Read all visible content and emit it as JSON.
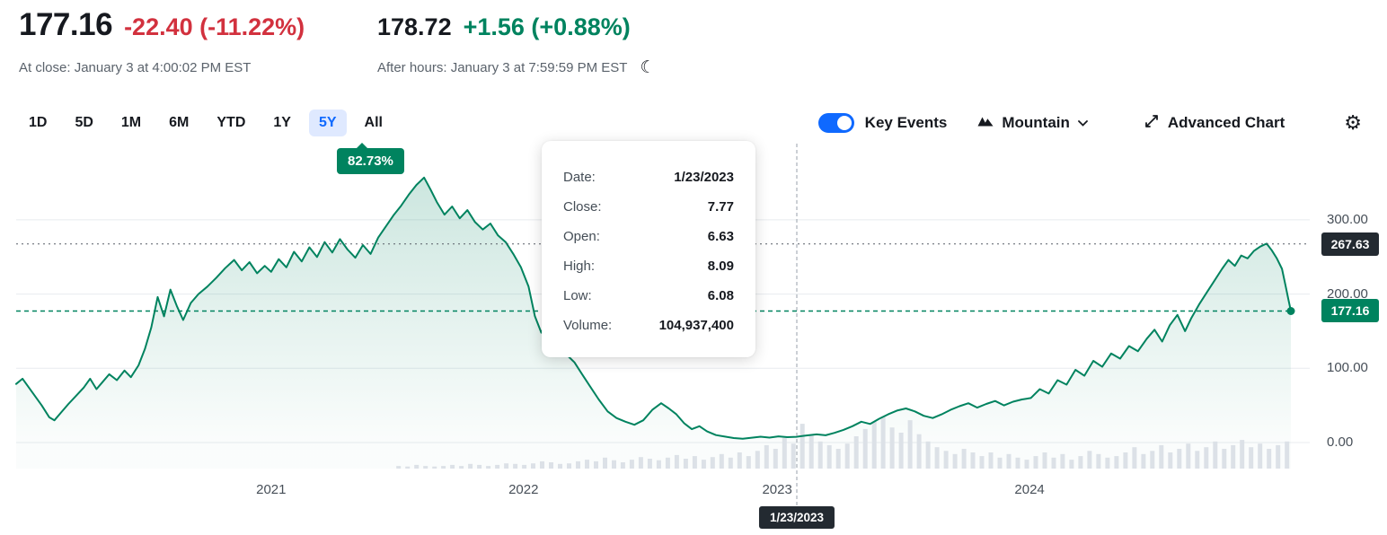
{
  "header": {
    "price": "177.16",
    "change": "-22.40 (-11.22%)",
    "at_close": "At close: January 3 at 4:00:02 PM EST",
    "after_hours_price": "178.72",
    "after_hours_change": "+1.56 (+0.88%)",
    "after_hours_note": "After hours: January 3 at 7:59:59 PM EST",
    "moon_icon": "☾"
  },
  "toolbar": {
    "ranges": [
      "1D",
      "5D",
      "1M",
      "6M",
      "YTD",
      "1Y",
      "5Y",
      "All"
    ],
    "selected_range": "5Y",
    "key_events_label": "Key Events",
    "key_events_on": true,
    "chart_type_label": "Mountain",
    "advanced_chart_label": "Advanced Chart",
    "settings_icon": "⚙"
  },
  "perf_badge": "82.73%",
  "tooltip": {
    "rows": [
      {
        "label": "Date:",
        "value": "1/23/2023"
      },
      {
        "label": "Close:",
        "value": "7.77"
      },
      {
        "label": "Open:",
        "value": "6.63"
      },
      {
        "label": "High:",
        "value": "8.09"
      },
      {
        "label": "Low:",
        "value": "6.08"
      },
      {
        "label": "Volume:",
        "value": "104,937,400"
      }
    ]
  },
  "chart_data": {
    "type": "area",
    "title": "5Y mountain chart with volume",
    "legend": "none",
    "grid": true,
    "x_range_years": [
      2020,
      2025
    ],
    "y_axis_range": [
      0,
      360
    ],
    "x_ticks": [
      {
        "t": 0.2,
        "label": "2021"
      },
      {
        "t": 0.398,
        "label": "2022"
      },
      {
        "t": 0.597,
        "label": "2023"
      },
      {
        "t": 0.795,
        "label": "2024"
      }
    ],
    "y_ticks": [
      {
        "value": 300,
        "label": "300.00"
      },
      {
        "value": 200,
        "label": "200.00"
      },
      {
        "value": 100,
        "label": "100.00"
      },
      {
        "value": 0,
        "label": "0.00"
      }
    ],
    "series": [
      {
        "name": "price",
        "points": [
          [
            0.0,
            79
          ],
          [
            0.005,
            86
          ],
          [
            0.01,
            74
          ],
          [
            0.015,
            62
          ],
          [
            0.02,
            50
          ],
          [
            0.026,
            34
          ],
          [
            0.03,
            30
          ],
          [
            0.035,
            40
          ],
          [
            0.041,
            52
          ],
          [
            0.047,
            63
          ],
          [
            0.053,
            74
          ],
          [
            0.058,
            86
          ],
          [
            0.063,
            72
          ],
          [
            0.068,
            82
          ],
          [
            0.073,
            92
          ],
          [
            0.079,
            84
          ],
          [
            0.085,
            97
          ],
          [
            0.09,
            88
          ],
          [
            0.096,
            104
          ],
          [
            0.101,
            126
          ],
          [
            0.106,
            155
          ],
          [
            0.111,
            196
          ],
          [
            0.116,
            170
          ],
          [
            0.121,
            206
          ],
          [
            0.126,
            184
          ],
          [
            0.131,
            165
          ],
          [
            0.137,
            188
          ],
          [
            0.143,
            200
          ],
          [
            0.15,
            210
          ],
          [
            0.157,
            222
          ],
          [
            0.164,
            235
          ],
          [
            0.171,
            246
          ],
          [
            0.177,
            232
          ],
          [
            0.183,
            243
          ],
          [
            0.189,
            228
          ],
          [
            0.195,
            238
          ],
          [
            0.2,
            230
          ],
          [
            0.206,
            247
          ],
          [
            0.212,
            236
          ],
          [
            0.218,
            257
          ],
          [
            0.224,
            244
          ],
          [
            0.23,
            263
          ],
          [
            0.236,
            250
          ],
          [
            0.242,
            270
          ],
          [
            0.248,
            256
          ],
          [
            0.254,
            274
          ],
          [
            0.26,
            260
          ],
          [
            0.266,
            249
          ],
          [
            0.272,
            266
          ],
          [
            0.278,
            254
          ],
          [
            0.284,
            276
          ],
          [
            0.29,
            291
          ],
          [
            0.296,
            306
          ],
          [
            0.302,
            319
          ],
          [
            0.308,
            334
          ],
          [
            0.314,
            347
          ],
          [
            0.32,
            357
          ],
          [
            0.325,
            341
          ],
          [
            0.33,
            324
          ],
          [
            0.336,
            307
          ],
          [
            0.342,
            318
          ],
          [
            0.348,
            302
          ],
          [
            0.354,
            313
          ],
          [
            0.36,
            297
          ],
          [
            0.366,
            287
          ],
          [
            0.372,
            295
          ],
          [
            0.378,
            279
          ],
          [
            0.384,
            270
          ],
          [
            0.39,
            254
          ],
          [
            0.396,
            236
          ],
          [
            0.402,
            210
          ],
          [
            0.407,
            170
          ],
          [
            0.412,
            148
          ],
          [
            0.417,
            165
          ],
          [
            0.422,
            122
          ],
          [
            0.427,
            140
          ],
          [
            0.432,
            118
          ],
          [
            0.438,
            108
          ],
          [
            0.444,
            92
          ],
          [
            0.45,
            76
          ],
          [
            0.457,
            58
          ],
          [
            0.464,
            42
          ],
          [
            0.471,
            33
          ],
          [
            0.478,
            28
          ],
          [
            0.485,
            24
          ],
          [
            0.492,
            30
          ],
          [
            0.499,
            44
          ],
          [
            0.506,
            53
          ],
          [
            0.512,
            46
          ],
          [
            0.518,
            38
          ],
          [
            0.524,
            26
          ],
          [
            0.53,
            18
          ],
          [
            0.536,
            22
          ],
          [
            0.542,
            15
          ],
          [
            0.549,
            10
          ],
          [
            0.556,
            8
          ],
          [
            0.563,
            6
          ],
          [
            0.57,
            5.2
          ],
          [
            0.577,
            6.5
          ],
          [
            0.584,
            7.8
          ],
          [
            0.591,
            6.6
          ],
          [
            0.598,
            8.4
          ],
          [
            0.605,
            7.2
          ],
          [
            0.612,
            7.77
          ],
          [
            0.62,
            9.5
          ],
          [
            0.628,
            11
          ],
          [
            0.635,
            9.8
          ],
          [
            0.642,
            13
          ],
          [
            0.649,
            17
          ],
          [
            0.656,
            22
          ],
          [
            0.663,
            28
          ],
          [
            0.67,
            25
          ],
          [
            0.677,
            32
          ],
          [
            0.684,
            38
          ],
          [
            0.691,
            43
          ],
          [
            0.698,
            46
          ],
          [
            0.705,
            42
          ],
          [
            0.712,
            36
          ],
          [
            0.719,
            33
          ],
          [
            0.726,
            38
          ],
          [
            0.733,
            44
          ],
          [
            0.74,
            49
          ],
          [
            0.747,
            53
          ],
          [
            0.754,
            47
          ],
          [
            0.761,
            52
          ],
          [
            0.768,
            56
          ],
          [
            0.775,
            50
          ],
          [
            0.782,
            55
          ],
          [
            0.789,
            58
          ],
          [
            0.796,
            60
          ],
          [
            0.803,
            72
          ],
          [
            0.81,
            66
          ],
          [
            0.817,
            84
          ],
          [
            0.824,
            78
          ],
          [
            0.831,
            98
          ],
          [
            0.838,
            90
          ],
          [
            0.845,
            110
          ],
          [
            0.852,
            102
          ],
          [
            0.859,
            120
          ],
          [
            0.866,
            113
          ],
          [
            0.873,
            130
          ],
          [
            0.88,
            123
          ],
          [
            0.887,
            140
          ],
          [
            0.893,
            152
          ],
          [
            0.899,
            136
          ],
          [
            0.905,
            158
          ],
          [
            0.911,
            172
          ],
          [
            0.917,
            150
          ],
          [
            0.922,
            168
          ],
          [
            0.928,
            186
          ],
          [
            0.934,
            202
          ],
          [
            0.94,
            218
          ],
          [
            0.946,
            234
          ],
          [
            0.951,
            246
          ],
          [
            0.956,
            238
          ],
          [
            0.961,
            252
          ],
          [
            0.966,
            248
          ],
          [
            0.971,
            258
          ],
          [
            0.976,
            264
          ],
          [
            0.981,
            268
          ],
          [
            0.985,
            259
          ],
          [
            0.989,
            248
          ],
          [
            0.993,
            234
          ],
          [
            0.996,
            210
          ],
          [
            0.998,
            193
          ],
          [
            1.0,
            177.16
          ]
        ]
      }
    ],
    "volume": {
      "t_start": 0.3,
      "t_step": 0.00704,
      "values": [
        0.05,
        0.04,
        0.07,
        0.05,
        0.04,
        0.05,
        0.07,
        0.05,
        0.09,
        0.07,
        0.05,
        0.07,
        0.1,
        0.09,
        0.07,
        0.1,
        0.14,
        0.12,
        0.09,
        0.1,
        0.14,
        0.17,
        0.14,
        0.21,
        0.16,
        0.12,
        0.17,
        0.22,
        0.19,
        0.16,
        0.21,
        0.26,
        0.19,
        0.24,
        0.17,
        0.22,
        0.28,
        0.21,
        0.31,
        0.24,
        0.34,
        0.45,
        0.38,
        0.59,
        0.48,
        0.86,
        0.66,
        0.52,
        0.45,
        0.38,
        0.48,
        0.62,
        0.76,
        0.9,
        1.0,
        0.79,
        0.69,
        0.93,
        0.66,
        0.52,
        0.41,
        0.34,
        0.28,
        0.38,
        0.31,
        0.24,
        0.31,
        0.21,
        0.28,
        0.21,
        0.17,
        0.24,
        0.31,
        0.21,
        0.28,
        0.17,
        0.24,
        0.34,
        0.28,
        0.21,
        0.24,
        0.31,
        0.41,
        0.28,
        0.34,
        0.45,
        0.31,
        0.38,
        0.48,
        0.34,
        0.41,
        0.52,
        0.38,
        0.45,
        0.55,
        0.41,
        0.48,
        0.38,
        0.45,
        0.52
      ]
    },
    "crosshair": {
      "t": 0.6124,
      "date_label": "1/23/2023",
      "price_level": 267.63,
      "price_level_label": "267.63"
    },
    "current_price": {
      "value": 177.16,
      "label": "177.16"
    }
  },
  "colors": {
    "green": "#00835f",
    "red": "#d2313e",
    "blue": "#0f69ff",
    "blue_soft": "#dfe9ff",
    "dark_text": "#16191f",
    "gray_text": "#5b636c",
    "axis_text": "#474f58",
    "flag_dark": "#232a31",
    "grid": "#e8ebef",
    "volume_bar": "#dce1e7"
  }
}
